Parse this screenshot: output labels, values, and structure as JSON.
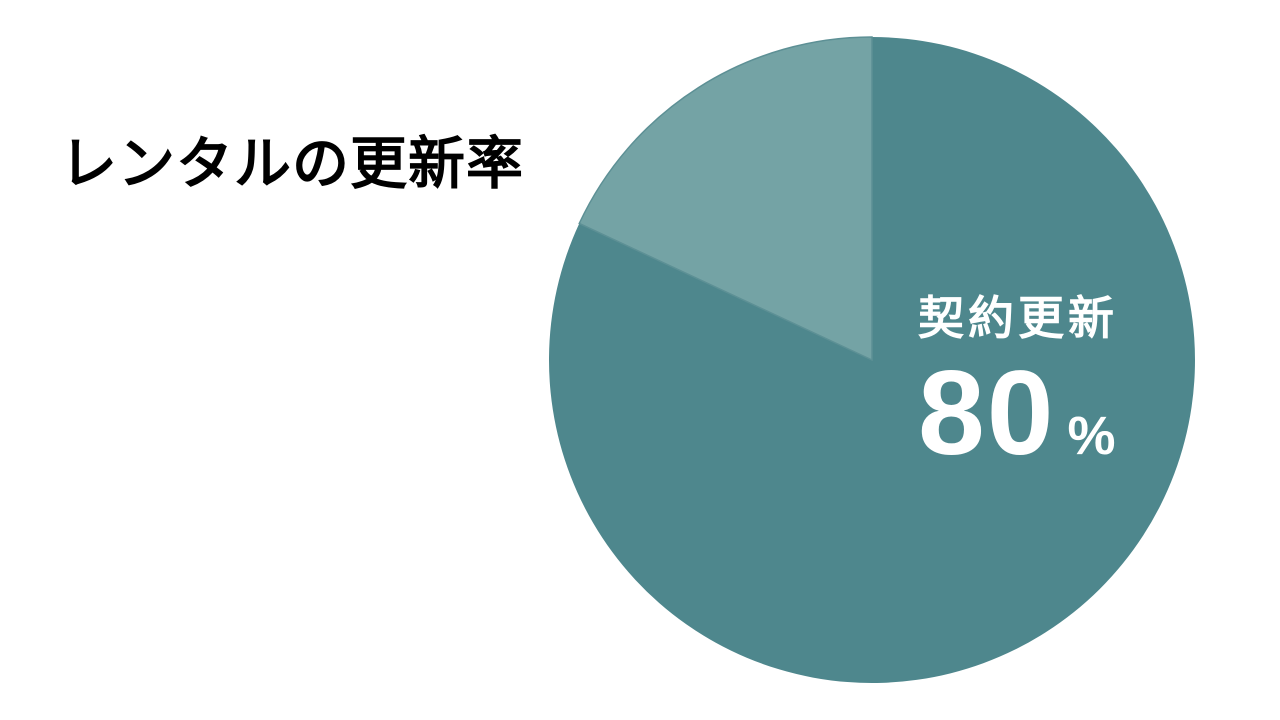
{
  "page": {
    "background": "#ffffff"
  },
  "chart_data": {
    "type": "pie",
    "title": "レンタルの更新率",
    "title_color": "#000000",
    "legend": "none",
    "start_angle_deg": 0,
    "direction": "clockwise",
    "slices": [
      {
        "label": "契約更新",
        "value_pct": 80,
        "color": "#4e878d",
        "drawn_sweep_deg": 295
      },
      {
        "label": "",
        "value_pct": 20,
        "color": "#74a3a5",
        "outline": "#5d9095",
        "drawn_sweep_deg": 65
      }
    ],
    "label_on_slice": {
      "category": "契約更新",
      "number": "80",
      "unit": "%",
      "text_color": "#ffffff"
    }
  }
}
